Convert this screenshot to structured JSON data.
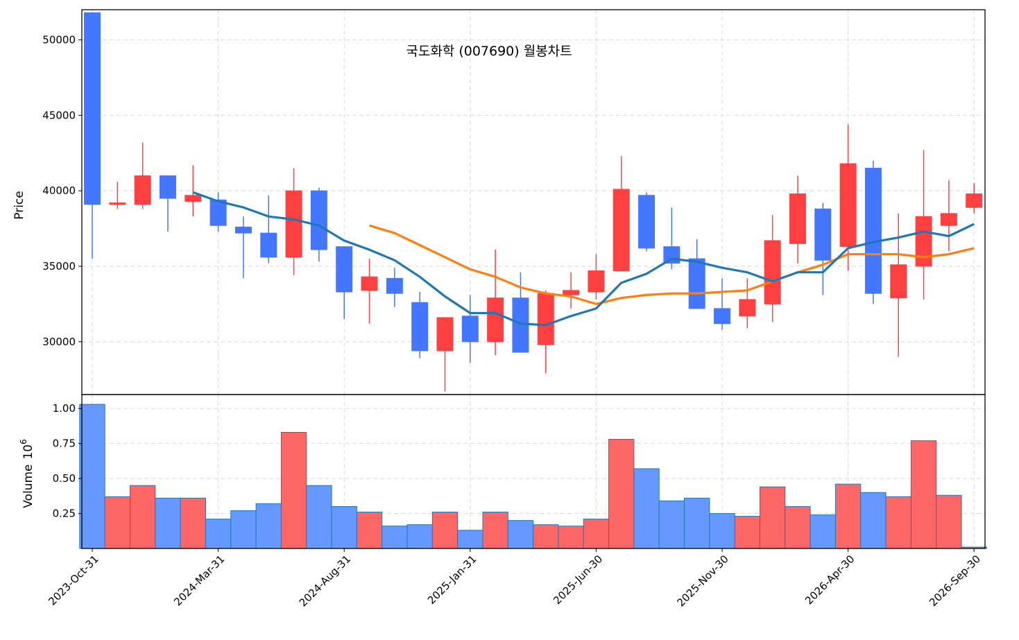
{
  "chart_data": {
    "type": "candlestick",
    "title": "국도화학 (007690) 월봉차트",
    "price_panel": {
      "ylabel": "Price",
      "ylim": [
        26500,
        52000
      ],
      "yticks": [
        30000,
        35000,
        40000,
        45000,
        50000
      ],
      "ytick_labels": [
        "30000",
        "35000",
        "40000",
        "45000",
        "50000"
      ],
      "grid": true
    },
    "volume_panel": {
      "ylabel": "Volume",
      "ylabel_exponent": "10",
      "ylabel_power": "6",
      "ylim": [
        0,
        1.1
      ],
      "yticks": [
        0.25,
        0.5,
        0.75,
        1.0
      ],
      "ytick_labels": [
        "0.25",
        "0.50",
        "0.75",
        "1.00"
      ],
      "grid": true
    },
    "x_tick_index": [
      0,
      5,
      10,
      15,
      20,
      25,
      30,
      35
    ],
    "x_tick_labels": [
      "2023-Oct-31",
      "2024-Mar-31",
      "2024-Aug-31",
      "2025-Jan-31",
      "2025-Jun-30",
      "2025-Nov-30",
      "2026-Apr-30",
      "2026-Sep-30"
    ],
    "colors": {
      "up": "#ff4040",
      "down": "#4477ff",
      "vol_up": "#ff6666",
      "vol_down": "#6699ff",
      "vol_edge": "#1f77b4",
      "ma_short": "#1f77b4",
      "ma_long": "#ff7f0e"
    },
    "candles": [
      {
        "open": 51800,
        "high": 51800,
        "low": 35500,
        "close": 39100,
        "volume": 1.03
      },
      {
        "open": 39100,
        "high": 40600,
        "low": 38800,
        "close": 39200,
        "volume": 0.37
      },
      {
        "open": 39100,
        "high": 43200,
        "low": 38800,
        "close": 41000,
        "volume": 0.45
      },
      {
        "open": 41000,
        "high": 41000,
        "low": 37300,
        "close": 39500,
        "volume": 0.36
      },
      {
        "open": 39300,
        "high": 41700,
        "low": 38300,
        "close": 39700,
        "volume": 0.36
      },
      {
        "open": 39400,
        "high": 39900,
        "low": 37300,
        "close": 37700,
        "volume": 0.21
      },
      {
        "open": 37600,
        "high": 38300,
        "low": 34200,
        "close": 37200,
        "volume": 0.27
      },
      {
        "open": 37200,
        "high": 39700,
        "low": 35200,
        "close": 35600,
        "volume": 0.32
      },
      {
        "open": 35600,
        "high": 41500,
        "low": 34400,
        "close": 40000,
        "volume": 0.83
      },
      {
        "open": 40000,
        "high": 40200,
        "low": 35300,
        "close": 36100,
        "volume": 0.45
      },
      {
        "open": 36300,
        "high": 36300,
        "low": 31500,
        "close": 33300,
        "volume": 0.3
      },
      {
        "open": 33400,
        "high": 35500,
        "low": 31200,
        "close": 34300,
        "volume": 0.26
      },
      {
        "open": 34200,
        "high": 34900,
        "low": 32300,
        "close": 33200,
        "volume": 0.16
      },
      {
        "open": 32600,
        "high": 33300,
        "low": 28900,
        "close": 29400,
        "volume": 0.17
      },
      {
        "open": 29400,
        "high": 31600,
        "low": 26700,
        "close": 31600,
        "volume": 0.26
      },
      {
        "open": 31700,
        "high": 33100,
        "low": 28600,
        "close": 30000,
        "volume": 0.13
      },
      {
        "open": 30000,
        "high": 36100,
        "low": 29100,
        "close": 32900,
        "volume": 0.26
      },
      {
        "open": 32900,
        "high": 34600,
        "low": 29300,
        "close": 29300,
        "volume": 0.2
      },
      {
        "open": 29800,
        "high": 33400,
        "low": 27900,
        "close": 33200,
        "volume": 0.17
      },
      {
        "open": 33100,
        "high": 34600,
        "low": 32200,
        "close": 33400,
        "volume": 0.16
      },
      {
        "open": 33300,
        "high": 35800,
        "low": 32800,
        "close": 34700,
        "volume": 0.21
      },
      {
        "open": 34700,
        "high": 42300,
        "low": 34700,
        "close": 40100,
        "volume": 0.78
      },
      {
        "open": 39700,
        "high": 39900,
        "low": 36000,
        "close": 36200,
        "volume": 0.57
      },
      {
        "open": 36300,
        "high": 38900,
        "low": 34800,
        "close": 35200,
        "volume": 0.34
      },
      {
        "open": 35500,
        "high": 36800,
        "low": 32200,
        "close": 32200,
        "volume": 0.36
      },
      {
        "open": 32200,
        "high": 34200,
        "low": 30800,
        "close": 31200,
        "volume": 0.25
      },
      {
        "open": 31700,
        "high": 34200,
        "low": 30900,
        "close": 32800,
        "volume": 0.23
      },
      {
        "open": 32500,
        "high": 38400,
        "low": 31300,
        "close": 36700,
        "volume": 0.44
      },
      {
        "open": 36500,
        "high": 41000,
        "low": 35200,
        "close": 39800,
        "volume": 0.3
      },
      {
        "open": 38800,
        "high": 39200,
        "low": 33100,
        "close": 35400,
        "volume": 0.24
      },
      {
        "open": 36300,
        "high": 44400,
        "low": 34700,
        "close": 41800,
        "volume": 0.46
      },
      {
        "open": 41500,
        "high": 42000,
        "low": 32500,
        "close": 33200,
        "volume": 0.4
      },
      {
        "open": 32900,
        "high": 38500,
        "low": 29000,
        "close": 35100,
        "volume": 0.37
      },
      {
        "open": 35000,
        "high": 42700,
        "low": 32800,
        "close": 38300,
        "volume": 0.77
      },
      {
        "open": 37700,
        "high": 40700,
        "low": 36000,
        "close": 38500,
        "volume": 0.38
      },
      {
        "open": 38900,
        "high": 40500,
        "low": 38500,
        "close": 39800,
        "volume": 0.01
      }
    ],
    "ma_short": [
      null,
      null,
      null,
      null,
      39900,
      39300,
      38900,
      38300,
      38100,
      37700,
      36700,
      36100,
      35400,
      34300,
      33000,
      31900,
      31900,
      31200,
      31100,
      31700,
      32200,
      33900,
      34500,
      35500,
      35300,
      34900,
      34600,
      34000,
      34600,
      34600,
      36200,
      36600,
      36900,
      37300,
      37000,
      37800
    ],
    "ma_long": [
      null,
      null,
      null,
      null,
      null,
      null,
      null,
      null,
      null,
      null,
      null,
      37700,
      37200,
      36400,
      35600,
      34800,
      34300,
      33600,
      33200,
      33000,
      32500,
      32900,
      33100,
      33200,
      33200,
      33300,
      33400,
      34000,
      34600,
      35100,
      35800,
      35800,
      35800,
      35600,
      35800,
      36200
    ]
  }
}
